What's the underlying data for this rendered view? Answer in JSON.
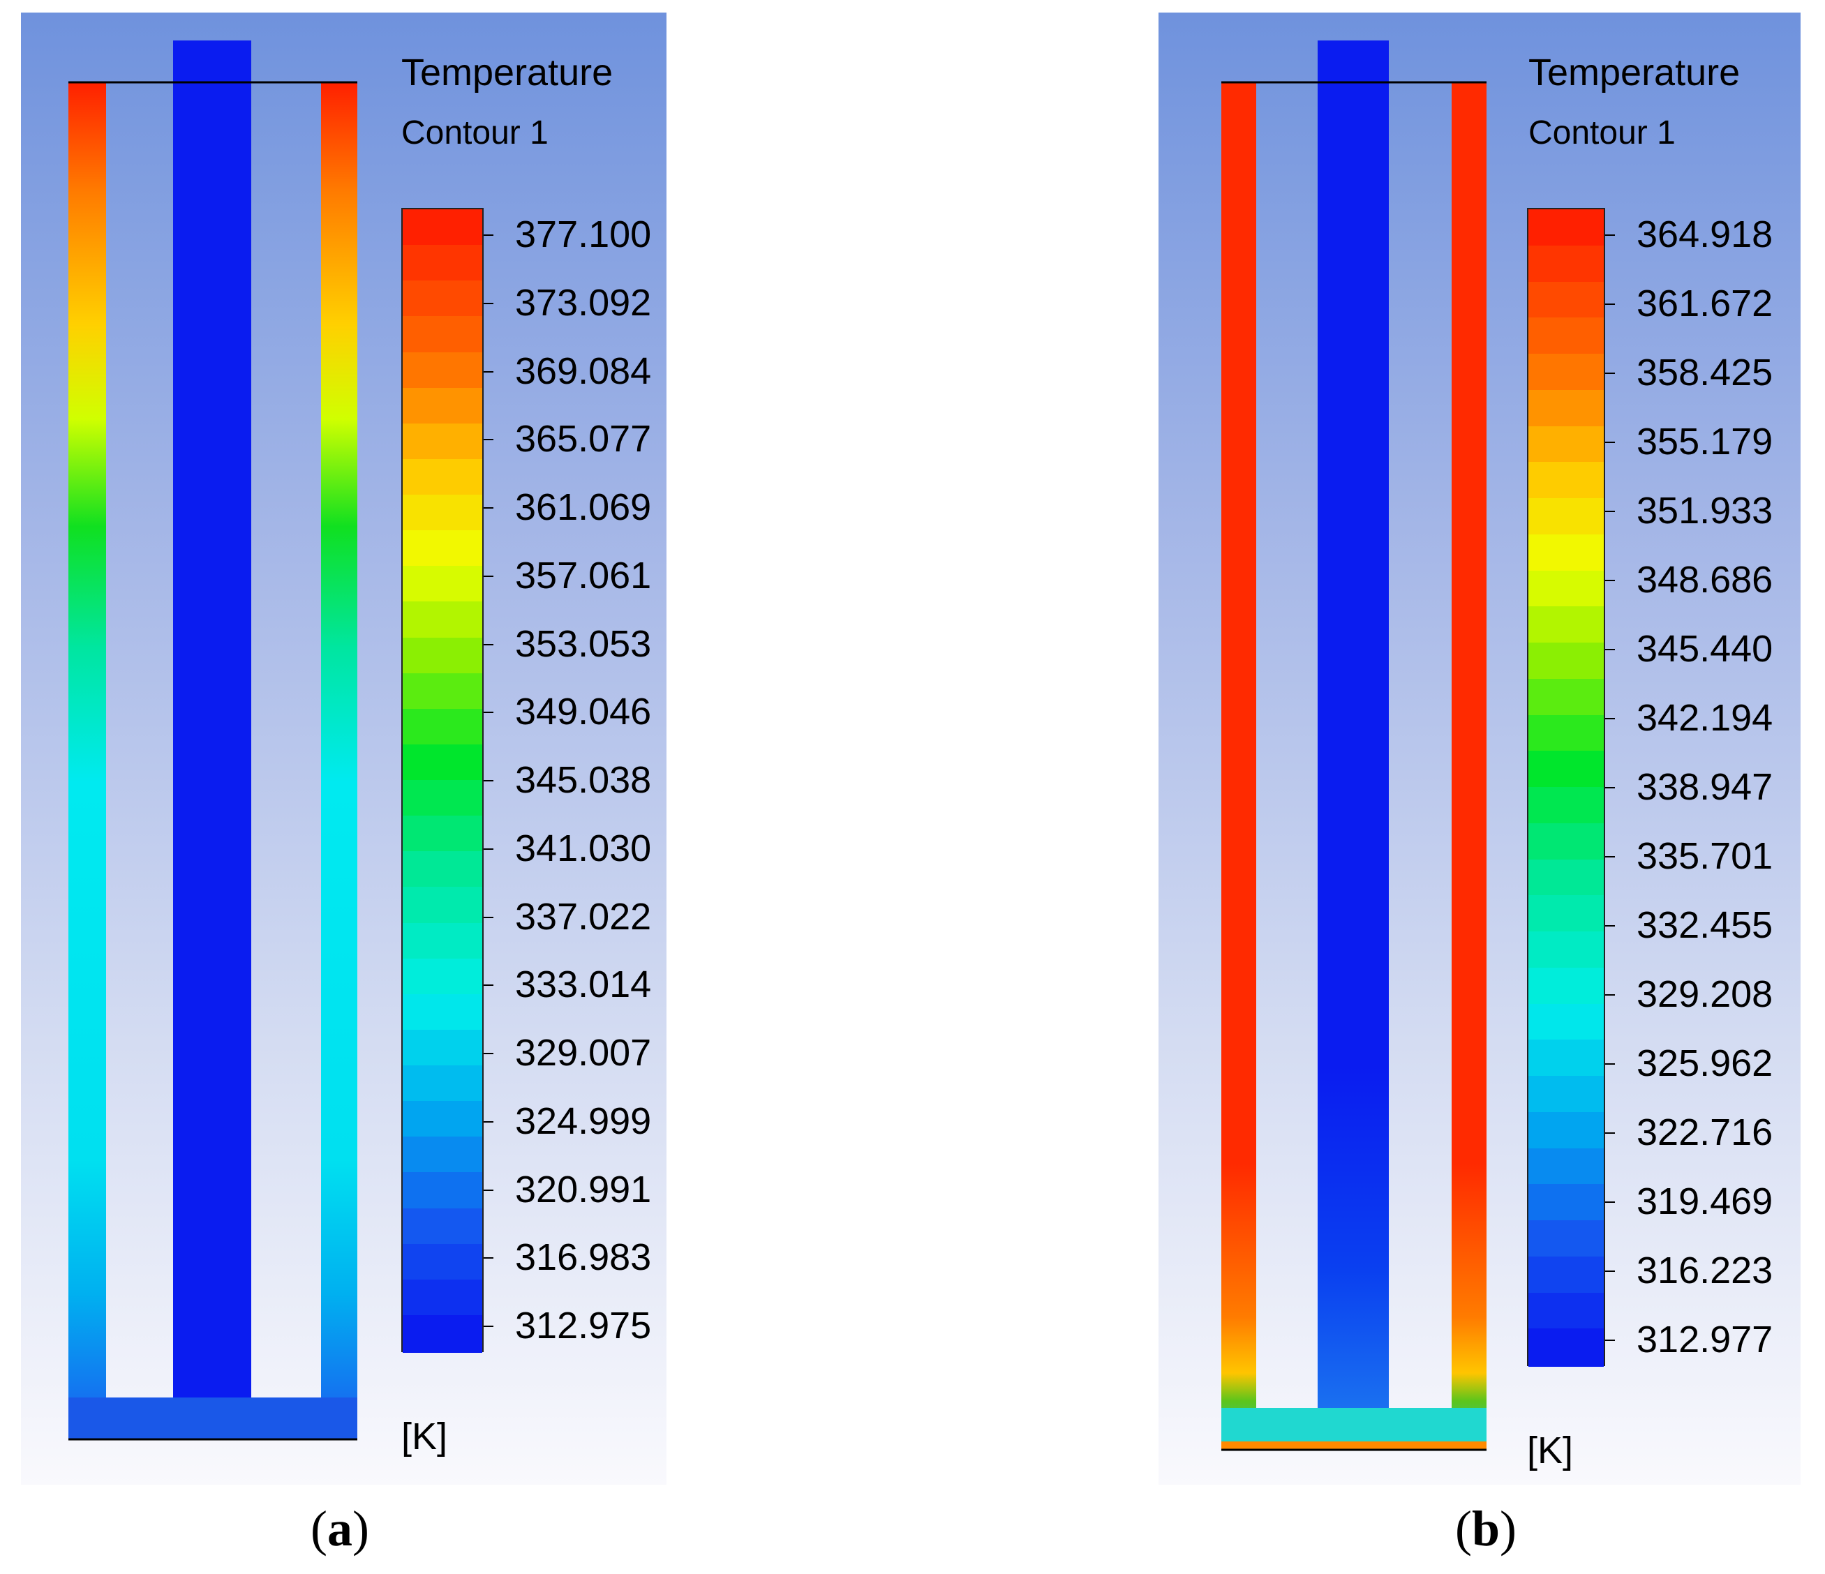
{
  "panels": [
    {
      "id": "a",
      "legend_title": "Temperature",
      "legend_subtitle": "Contour 1",
      "unit": "[K]",
      "caption_letter": "a",
      "ticks": [
        "377.100",
        "373.092",
        "369.084",
        "365.077",
        "361.069",
        "357.061",
        "353.053",
        "349.046",
        "345.038",
        "341.030",
        "337.022",
        "333.014",
        "329.007",
        "324.999",
        "320.991",
        "316.983",
        "312.975"
      ]
    },
    {
      "id": "b",
      "legend_title": "Temperature",
      "legend_subtitle": "Contour 1",
      "unit": "[K]",
      "caption_letter": "b",
      "ticks": [
        "364.918",
        "361.672",
        "358.425",
        "355.179",
        "351.933",
        "348.686",
        "345.440",
        "342.194",
        "338.947",
        "335.701",
        "332.455",
        "329.208",
        "325.962",
        "322.716",
        "319.469",
        "316.223",
        "312.977"
      ]
    }
  ],
  "colors": {
    "hot": "#ff2a00",
    "cold": "#0a1cf0",
    "cyan": "#00e8f0"
  }
}
